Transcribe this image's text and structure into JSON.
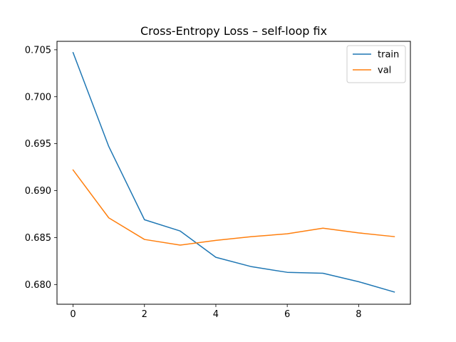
{
  "chart_data": {
    "type": "line",
    "title": "Cross-Entropy Loss – self-loop fix",
    "xlabel": "",
    "ylabel": "",
    "x": [
      0,
      1,
      2,
      3,
      4,
      5,
      6,
      7,
      8,
      9
    ],
    "series": [
      {
        "name": "train",
        "color": "#1f77b4",
        "values": [
          0.7047,
          0.6947,
          0.6869,
          0.6857,
          0.6829,
          0.6819,
          0.6813,
          0.6812,
          0.6803,
          0.6792
        ]
      },
      {
        "name": "val",
        "color": "#ff7f0e",
        "values": [
          0.6922,
          0.6871,
          0.6848,
          0.6842,
          0.6847,
          0.6851,
          0.6854,
          0.686,
          0.6855,
          0.6851
        ]
      }
    ],
    "xlim": [
      -0.45,
      9.45
    ],
    "ylim": [
      0.6779,
      0.7059
    ],
    "xticks": [
      0,
      2,
      4,
      6,
      8
    ],
    "xtick_labels": [
      "0",
      "2",
      "4",
      "6",
      "8"
    ],
    "yticks": [
      0.68,
      0.685,
      0.69,
      0.695,
      0.7,
      0.705
    ],
    "ytick_labels": [
      "0.680",
      "0.685",
      "0.690",
      "0.695",
      "0.700",
      "0.705"
    ],
    "grid": false,
    "legend": "top-right"
  }
}
